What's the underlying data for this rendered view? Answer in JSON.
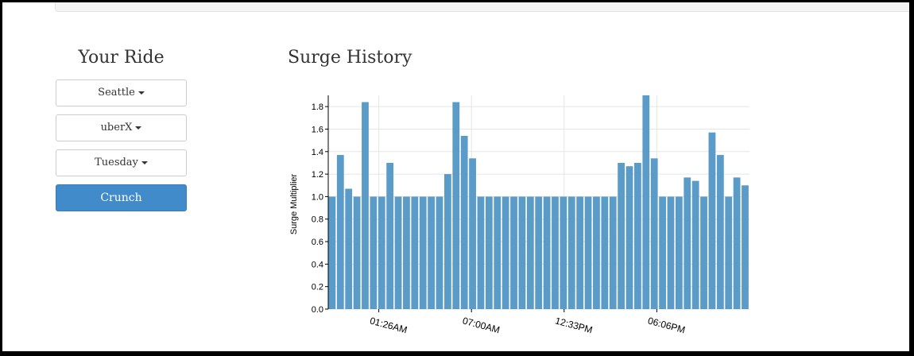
{
  "sidebar": {
    "title": "Your Ride",
    "city": "Seattle",
    "service": "uberX",
    "day": "Tuesday",
    "crunch_label": "Crunch"
  },
  "colors": {
    "bar": "#5b9bc8",
    "button": "#428bca",
    "grid": "#e5e5e5"
  },
  "chart_data": {
    "type": "bar",
    "title": "Surge History",
    "ylabel": "Surge Multiplier",
    "xlabel": "",
    "ylim": [
      0,
      1.9
    ],
    "yticks": [
      0.0,
      0.2,
      0.4,
      0.6,
      0.8,
      1.0,
      1.2,
      1.4,
      1.6,
      1.8
    ],
    "xtick_labels": [
      "01:26AM",
      "07:00AM",
      "12:33PM",
      "06:06PM"
    ],
    "grid": true,
    "values": [
      1.0,
      1.37,
      1.07,
      1.0,
      1.84,
      1.0,
      1.0,
      1.3,
      1.0,
      1.0,
      1.0,
      1.0,
      1.0,
      1.0,
      1.2,
      1.84,
      1.54,
      1.34,
      1.0,
      1.0,
      1.0,
      1.0,
      1.0,
      1.0,
      1.0,
      1.0,
      1.0,
      1.0,
      1.0,
      1.0,
      1.0,
      1.0,
      1.0,
      1.0,
      1.0,
      1.3,
      1.27,
      1.3,
      1.9,
      1.34,
      1.0,
      1.0,
      1.0,
      1.17,
      1.14,
      1.0,
      1.57,
      1.37,
      1.0,
      1.17,
      1.1
    ]
  }
}
